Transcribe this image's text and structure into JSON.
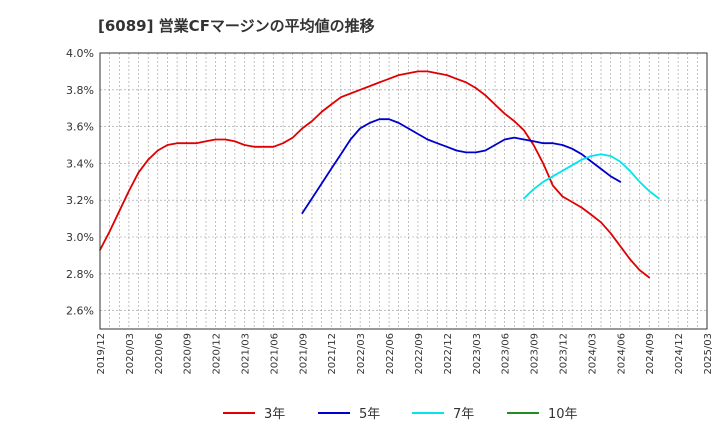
{
  "chart_data": {
    "type": "line",
    "title": "[6089]  営業CFマージンの平均値の推移",
    "xlabel": "",
    "ylabel": "",
    "ylim": [
      2.5,
      4.0
    ],
    "y_ticks": [
      "2.6%",
      "2.8%",
      "3.0%",
      "3.2%",
      "3.4%",
      "3.6%",
      "3.8%",
      "4.0%"
    ],
    "x_ticks": [
      "2019/12",
      "2020/03",
      "2020/06",
      "2020/09",
      "2020/12",
      "2021/03",
      "2021/06",
      "2021/09",
      "2021/12",
      "2022/03",
      "2022/06",
      "2022/09",
      "2022/12",
      "2023/03",
      "2023/06",
      "2023/09",
      "2023/12",
      "2024/03",
      "2024/06",
      "2024/09",
      "2024/12",
      "2025/03"
    ],
    "grid": true,
    "legend_position": "bottom",
    "series": [
      {
        "name": "3年",
        "color": "#e00000",
        "points": [
          [
            "2019/12",
            2.93
          ],
          [
            "2020/01",
            3.03
          ],
          [
            "2020/02",
            3.14
          ],
          [
            "2020/03",
            3.25
          ],
          [
            "2020/04",
            3.35
          ],
          [
            "2020/05",
            3.42
          ],
          [
            "2020/06",
            3.47
          ],
          [
            "2020/07",
            3.5
          ],
          [
            "2020/08",
            3.51
          ],
          [
            "2020/09",
            3.51
          ],
          [
            "2020/10",
            3.51
          ],
          [
            "2020/11",
            3.52
          ],
          [
            "2020/12",
            3.53
          ],
          [
            "2021/01",
            3.53
          ],
          [
            "2021/02",
            3.52
          ],
          [
            "2021/03",
            3.5
          ],
          [
            "2021/04",
            3.49
          ],
          [
            "2021/05",
            3.49
          ],
          [
            "2021/06",
            3.49
          ],
          [
            "2021/07",
            3.51
          ],
          [
            "2021/08",
            3.54
          ],
          [
            "2021/09",
            3.59
          ],
          [
            "2021/10",
            3.63
          ],
          [
            "2021/11",
            3.68
          ],
          [
            "2021/12",
            3.72
          ],
          [
            "2022/01",
            3.76
          ],
          [
            "2022/02",
            3.78
          ],
          [
            "2022/03",
            3.8
          ],
          [
            "2022/04",
            3.82
          ],
          [
            "2022/05",
            3.84
          ],
          [
            "2022/06",
            3.86
          ],
          [
            "2022/07",
            3.88
          ],
          [
            "2022/08",
            3.89
          ],
          [
            "2022/09",
            3.9
          ],
          [
            "2022/10",
            3.9
          ],
          [
            "2022/11",
            3.89
          ],
          [
            "2022/12",
            3.88
          ],
          [
            "2023/01",
            3.86
          ],
          [
            "2023/02",
            3.84
          ],
          [
            "2023/03",
            3.81
          ],
          [
            "2023/04",
            3.77
          ],
          [
            "2023/05",
            3.72
          ],
          [
            "2023/06",
            3.67
          ],
          [
            "2023/07",
            3.63
          ],
          [
            "2023/08",
            3.58
          ],
          [
            "2023/09",
            3.5
          ],
          [
            "2023/10",
            3.4
          ],
          [
            "2023/11",
            3.28
          ],
          [
            "2023/12",
            3.22
          ],
          [
            "2024/01",
            3.19
          ],
          [
            "2024/02",
            3.16
          ],
          [
            "2024/03",
            3.12
          ],
          [
            "2024/04",
            3.08
          ],
          [
            "2024/05",
            3.02
          ],
          [
            "2024/06",
            2.95
          ],
          [
            "2024/07",
            2.88
          ],
          [
            "2024/08",
            2.82
          ],
          [
            "2024/09",
            2.78
          ]
        ]
      },
      {
        "name": "5年",
        "color": "#0000cc",
        "points": [
          [
            "2021/09",
            3.13
          ],
          [
            "2021/10",
            3.21
          ],
          [
            "2021/11",
            3.29
          ],
          [
            "2021/12",
            3.37
          ],
          [
            "2022/01",
            3.45
          ],
          [
            "2022/02",
            3.53
          ],
          [
            "2022/03",
            3.59
          ],
          [
            "2022/04",
            3.62
          ],
          [
            "2022/05",
            3.64
          ],
          [
            "2022/06",
            3.64
          ],
          [
            "2022/07",
            3.62
          ],
          [
            "2022/08",
            3.59
          ],
          [
            "2022/09",
            3.56
          ],
          [
            "2022/10",
            3.53
          ],
          [
            "2022/11",
            3.51
          ],
          [
            "2022/12",
            3.49
          ],
          [
            "2023/01",
            3.47
          ],
          [
            "2023/02",
            3.46
          ],
          [
            "2023/03",
            3.46
          ],
          [
            "2023/04",
            3.47
          ],
          [
            "2023/05",
            3.5
          ],
          [
            "2023/06",
            3.53
          ],
          [
            "2023/07",
            3.54
          ],
          [
            "2023/08",
            3.53
          ],
          [
            "2023/09",
            3.52
          ],
          [
            "2023/10",
            3.51
          ],
          [
            "2023/11",
            3.51
          ],
          [
            "2023/12",
            3.5
          ],
          [
            "2024/01",
            3.48
          ],
          [
            "2024/02",
            3.45
          ],
          [
            "2024/03",
            3.41
          ],
          [
            "2024/04",
            3.37
          ],
          [
            "2024/05",
            3.33
          ],
          [
            "2024/06",
            3.3
          ]
        ]
      },
      {
        "name": "7年",
        "color": "#00e5ee",
        "points": [
          [
            "2023/08",
            3.21
          ],
          [
            "2023/09",
            3.26
          ],
          [
            "2023/10",
            3.3
          ],
          [
            "2023/11",
            3.33
          ],
          [
            "2023/12",
            3.36
          ],
          [
            "2024/01",
            3.39
          ],
          [
            "2024/02",
            3.42
          ],
          [
            "2024/03",
            3.44
          ],
          [
            "2024/04",
            3.45
          ],
          [
            "2024/05",
            3.44
          ],
          [
            "2024/06",
            3.41
          ],
          [
            "2024/07",
            3.36
          ],
          [
            "2024/08",
            3.3
          ],
          [
            "2024/09",
            3.25
          ],
          [
            "2024/10",
            3.21
          ]
        ]
      },
      {
        "name": "10年",
        "color": "#228b22",
        "points": []
      }
    ]
  }
}
